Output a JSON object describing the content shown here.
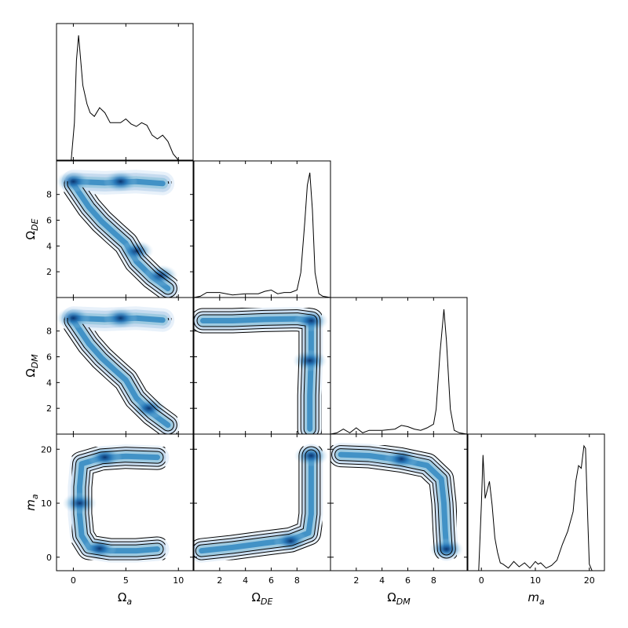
{
  "chart_data": {
    "type": "corner",
    "parameters": [
      {
        "label": "Ω",
        "sub": "a",
        "range": [
          -1.6,
          11.4
        ],
        "ticks": [
          0,
          5,
          10
        ]
      },
      {
        "label": "Ω",
        "sub": "DE",
        "range": [
          0.0,
          10.6
        ],
        "ticks": [
          2,
          4,
          6,
          8
        ]
      },
      {
        "label": "Ω",
        "sub": "DM",
        "range": [
          0.0,
          10.6
        ],
        "ticks": [
          2,
          4,
          6,
          8
        ]
      },
      {
        "label": "m",
        "sub": "a",
        "range": [
          -2.5,
          22.8
        ],
        "ticks": [
          0,
          10,
          20
        ]
      }
    ],
    "diagonal_1d": [
      {
        "x": [
          -0.2,
          0.1,
          0.3,
          0.5,
          0.9,
          1.3,
          1.6,
          2.0,
          2.5,
          3.0,
          3.5,
          4.0,
          4.5,
          5.0,
          5.5,
          6.0,
          6.5,
          7.0,
          7.5,
          8.0,
          8.5,
          9.0,
          9.5,
          10.0
        ],
        "density": [
          0.0,
          0.3,
          0.8,
          1.0,
          0.6,
          0.45,
          0.38,
          0.35,
          0.42,
          0.38,
          0.3,
          0.3,
          0.3,
          0.33,
          0.29,
          0.27,
          0.3,
          0.28,
          0.2,
          0.17,
          0.2,
          0.15,
          0.05,
          0.0
        ]
      },
      {
        "x": [
          0.0,
          0.5,
          1.0,
          2.0,
          3.0,
          4.0,
          5.0,
          5.5,
          6.0,
          6.5,
          7.0,
          7.5,
          8.0,
          8.3,
          8.6,
          8.8,
          9.0,
          9.2,
          9.4,
          9.7,
          10.0,
          10.6
        ],
        "density": [
          0.0,
          0.01,
          0.04,
          0.04,
          0.02,
          0.03,
          0.03,
          0.05,
          0.06,
          0.03,
          0.04,
          0.04,
          0.06,
          0.2,
          0.6,
          0.9,
          1.0,
          0.7,
          0.2,
          0.03,
          0.01,
          0.0
        ]
      },
      {
        "x": [
          0.0,
          0.5,
          1.0,
          1.5,
          2.0,
          2.5,
          3.0,
          4.0,
          5.0,
          5.5,
          6.0,
          6.5,
          7.0,
          7.5,
          8.0,
          8.2,
          8.5,
          8.8,
          9.0,
          9.3,
          9.6,
          10.0,
          10.6
        ],
        "density": [
          0.0,
          0.01,
          0.04,
          0.01,
          0.05,
          0.01,
          0.03,
          0.03,
          0.04,
          0.07,
          0.06,
          0.04,
          0.03,
          0.05,
          0.08,
          0.2,
          0.65,
          1.0,
          0.75,
          0.2,
          0.03,
          0.01,
          0.0
        ]
      },
      {
        "x": [
          -0.5,
          0.0,
          0.3,
          0.7,
          1.0,
          1.5,
          2.0,
          2.5,
          3.0,
          3.5,
          4.0,
          5.0,
          6.0,
          7.0,
          8.0,
          9.0,
          10.0,
          10.5,
          11.0,
          12.0,
          13.0,
          14.0,
          15.0,
          16.0,
          17.0,
          17.5,
          18.0,
          18.5,
          19.0,
          19.3,
          19.7,
          20.0,
          20.5,
          22.8
        ],
        "density": [
          0.0,
          0.5,
          0.88,
          0.55,
          0.6,
          0.68,
          0.5,
          0.25,
          0.14,
          0.06,
          0.05,
          0.02,
          0.07,
          0.03,
          0.06,
          0.02,
          0.07,
          0.05,
          0.06,
          0.02,
          0.04,
          0.08,
          0.2,
          0.3,
          0.45,
          0.68,
          0.8,
          0.78,
          0.95,
          0.93,
          0.4,
          0.05,
          0.0,
          0.0
        ]
      }
    ],
    "pairs_2d": [
      {
        "x": "Ω_a",
        "y": "Ω_DE",
        "ridge": [
          [
            0.0,
            9.0
          ],
          [
            3.0,
            8.9
          ],
          [
            6.0,
            9.0
          ],
          [
            8.5,
            8.85
          ],
          [
            0.0,
            8.8
          ],
          [
            1.5,
            7.0
          ],
          [
            2.7,
            5.9
          ],
          [
            3.9,
            5.0
          ],
          [
            5.0,
            4.2
          ],
          [
            6.0,
            2.8
          ],
          [
            7.5,
            1.6
          ],
          [
            9.0,
            0.7
          ]
        ],
        "peaks": [
          [
            0.0,
            9.0
          ],
          [
            4.5,
            9.0
          ],
          [
            6.0,
            3.6
          ],
          [
            8.3,
            1.7
          ]
        ]
      },
      {
        "x": "Ω_a",
        "y": "Ω_DM",
        "ridge": [
          [
            0.0,
            9.0
          ],
          [
            3.0,
            8.9
          ],
          [
            6.0,
            9.0
          ],
          [
            8.5,
            8.85
          ],
          [
            0.0,
            8.8
          ],
          [
            1.5,
            7.0
          ],
          [
            2.7,
            5.9
          ],
          [
            3.9,
            5.0
          ],
          [
            5.0,
            4.2
          ],
          [
            6.0,
            2.8
          ],
          [
            7.5,
            1.6
          ],
          [
            9.0,
            0.7
          ]
        ],
        "peaks": [
          [
            0.0,
            9.0
          ],
          [
            4.5,
            9.0
          ],
          [
            7.2,
            2.0
          ]
        ]
      },
      {
        "x": "Ω_DE",
        "y": "Ω_DM",
        "ridge": [
          [
            0.7,
            8.8
          ],
          [
            3.0,
            8.8
          ],
          [
            5.5,
            8.9
          ],
          [
            8.0,
            8.95
          ],
          [
            9.1,
            8.8
          ],
          [
            9.1,
            6.0
          ],
          [
            9.0,
            3.0
          ],
          [
            9.0,
            0.4
          ]
        ],
        "peaks": [
          [
            9.1,
            8.8
          ],
          [
            9.0,
            5.7
          ]
        ]
      },
      {
        "x": "Ω_a",
        "y": "m_a",
        "ridge": [
          [
            8.0,
            18.5
          ],
          [
            5.0,
            18.7
          ],
          [
            2.7,
            18.4
          ],
          [
            0.8,
            17.3
          ],
          [
            0.6,
            13.0
          ],
          [
            0.6,
            8.0
          ],
          [
            0.8,
            4.0
          ],
          [
            1.5,
            1.8
          ],
          [
            3.5,
            1.2
          ],
          [
            6.0,
            1.2
          ],
          [
            8.0,
            1.5
          ]
        ],
        "peaks": [
          [
            3.0,
            18.5
          ],
          [
            2.5,
            1.6
          ],
          [
            0.6,
            10.0
          ]
        ]
      },
      {
        "x": "Ω_DE",
        "y": "m_a",
        "ridge": [
          [
            0.6,
            1.2
          ],
          [
            3.0,
            1.8
          ],
          [
            5.5,
            2.6
          ],
          [
            7.5,
            3.2
          ],
          [
            8.9,
            4.5
          ],
          [
            9.1,
            8.0
          ],
          [
            9.1,
            13.0
          ],
          [
            9.1,
            18.8
          ]
        ],
        "peaks": [
          [
            9.1,
            18.8
          ],
          [
            7.5,
            3.0
          ]
        ]
      },
      {
        "x": "Ω_DM",
        "y": "m_a",
        "ridge": [
          [
            0.8,
            19.0
          ],
          [
            3.0,
            18.8
          ],
          [
            5.5,
            18.0
          ],
          [
            7.5,
            17.0
          ],
          [
            8.6,
            14.5
          ],
          [
            8.8,
            10.0
          ],
          [
            8.9,
            5.0
          ],
          [
            9.0,
            1.5
          ]
        ],
        "peaks": [
          [
            9.0,
            1.5
          ],
          [
            5.5,
            18.2
          ]
        ]
      }
    ],
    "colormap": [
      "#08306b",
      "#2171b5",
      "#6baed6",
      "#c6dbef",
      "#ffffff"
    ],
    "contour_color": "#000000"
  }
}
